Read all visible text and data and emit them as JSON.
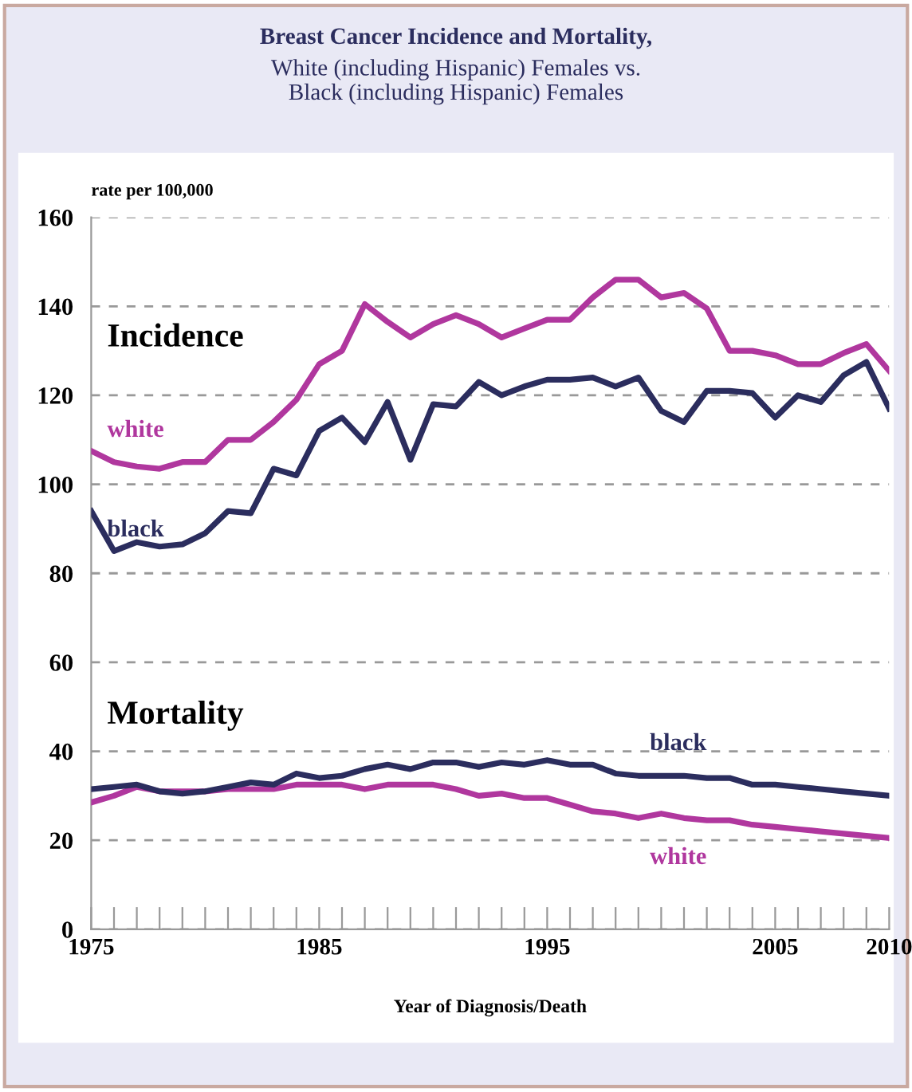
{
  "chart_data": {
    "type": "line",
    "title": "Breast Cancer Incidence and Mortality,",
    "subtitle": "White (including Hispanic) Females vs.\nBlack (including Hispanic) Females",
    "xlabel": "Year of Diagnosis/Death",
    "ylabel": "rate per 100,000",
    "x": [
      1975,
      1976,
      1977,
      1978,
      1979,
      1980,
      1981,
      1982,
      1983,
      1984,
      1985,
      1986,
      1987,
      1988,
      1989,
      1990,
      1991,
      1992,
      1993,
      1994,
      1995,
      1996,
      1997,
      1998,
      1999,
      2000,
      2001,
      2002,
      2003,
      2004,
      2005,
      2006,
      2007,
      2008,
      2009,
      2010
    ],
    "series": [
      {
        "name": "white",
        "color": "#b0379e",
        "values": [
          107.5,
          105,
          104,
          103.5,
          105,
          105,
          110,
          110,
          114,
          119,
          127,
          130,
          140.5,
          136.5,
          133,
          136,
          138,
          136,
          133,
          135,
          137,
          137,
          142,
          146,
          146,
          142,
          143,
          139.5,
          130,
          130,
          129,
          127,
          127,
          129.5,
          131.5,
          125.5
        ]
      },
      {
        "name": "black",
        "color": "#2b2d5e",
        "values": [
          94,
          85,
          87,
          86,
          86.5,
          89,
          94,
          93.5,
          103.5,
          102,
          112,
          115,
          109.5,
          118.5,
          105.5,
          118,
          117.5,
          123,
          120,
          122,
          123.5,
          123.5,
          124,
          122,
          124,
          116.5,
          114,
          121,
          121,
          120.5,
          115,
          120,
          118.5,
          124.5,
          127.5,
          117
        ]
      },
      {
        "name": "white",
        "color": "#b0379e",
        "values": [
          28.5,
          30,
          32,
          31,
          31,
          31,
          31.5,
          31.5,
          31.5,
          32.5,
          32.5,
          32.5,
          31.5,
          32.5,
          32.5,
          32.5,
          31.5,
          30,
          30.5,
          29.5,
          29.5,
          28,
          26.5,
          26,
          25,
          26,
          25,
          24.5,
          24.5,
          23.5,
          23,
          22.5,
          22,
          21.5,
          21,
          20.5
        ]
      },
      {
        "name": "black",
        "color": "#2b2d5e",
        "values": [
          31.5,
          32,
          32.5,
          31,
          30.5,
          31,
          32,
          33,
          32.5,
          35,
          34,
          34.5,
          36,
          37,
          36,
          37.5,
          37.5,
          36.5,
          37.5,
          37,
          38,
          37,
          37,
          35,
          34.5,
          34.5,
          34.5,
          34,
          34,
          32.5,
          32.5,
          32,
          31.5,
          31,
          30.5,
          30
        ]
      }
    ],
    "annotations": [
      "Incidence",
      "Mortality"
    ],
    "xlim": [
      1975,
      2010
    ],
    "xticks": [
      1975,
      {
        "value": 1976,
        "label": null
      },
      {
        "value": 1977,
        "label": null
      },
      {
        "value": 1978,
        "label": null
      },
      {
        "value": 1979,
        "label": null
      },
      {
        "value": 1980,
        "label": null
      },
      {
        "value": 1981,
        "label": null
      },
      {
        "value": 1982,
        "label": null
      },
      {
        "value": 1983,
        "label": null
      },
      {
        "value": 1984,
        "label": null
      },
      1985,
      {
        "value": 1986,
        "label": null
      },
      {
        "value": 1987,
        "label": null
      },
      {
        "value": 1988,
        "label": null
      },
      {
        "value": 1989,
        "label": null
      },
      {
        "value": 1990,
        "label": null
      },
      {
        "value": 1991,
        "label": null
      },
      {
        "value": 1992,
        "label": null
      },
      {
        "value": 1993,
        "label": null
      },
      {
        "value": 1994,
        "label": null
      },
      1995,
      {
        "value": 1996,
        "label": null
      },
      {
        "value": 1997,
        "label": null
      },
      {
        "value": 1998,
        "label": null
      },
      {
        "value": 1999,
        "label": null
      },
      {
        "value": 2000,
        "label": null
      },
      {
        "value": 2001,
        "label": null
      },
      {
        "value": 2002,
        "label": null
      },
      {
        "value": 2003,
        "label": null
      },
      {
        "value": 2004,
        "label": null
      },
      2005,
      {
        "value": 2006,
        "label": null
      },
      {
        "value": 2007,
        "label": null
      },
      {
        "value": 2008,
        "label": null
      },
      {
        "value": 2009,
        "label": null
      },
      2010
    ],
    "ylim": [
      0,
      160
    ],
    "yticks": [
      0,
      20,
      40,
      60,
      80,
      100,
      120,
      140,
      160
    ],
    "grid": "y",
    "line_style": "solid",
    "marker": "none"
  }
}
